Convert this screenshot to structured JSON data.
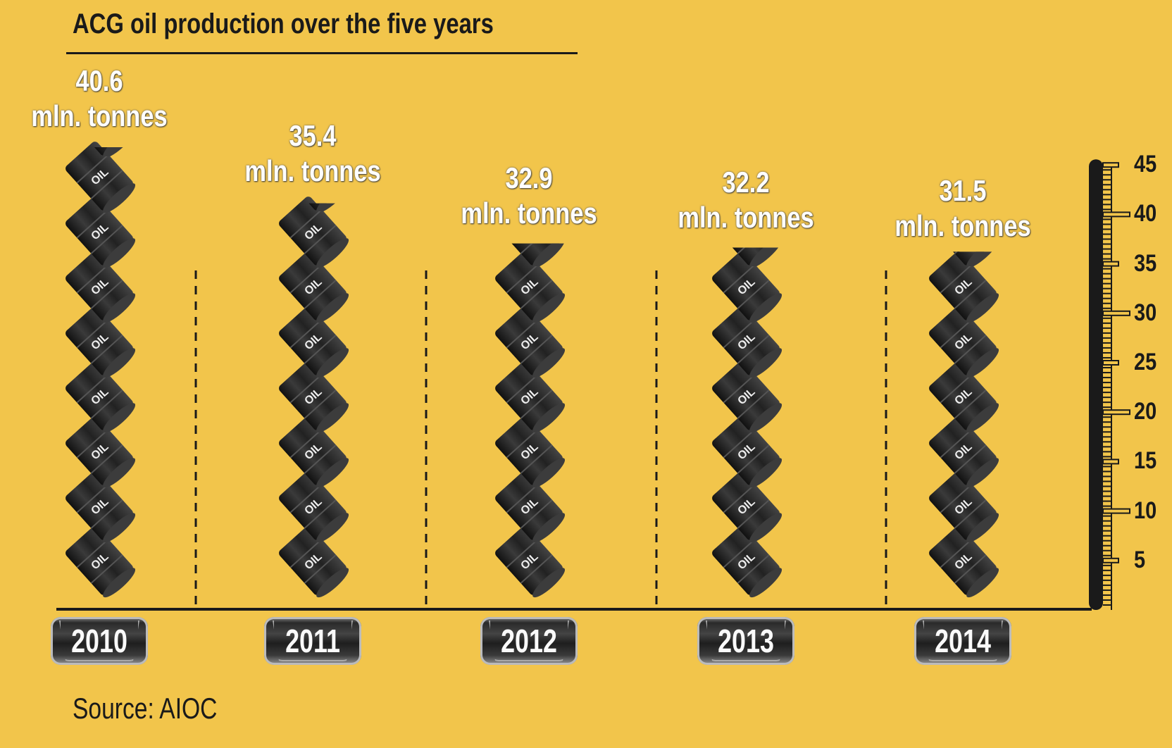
{
  "chart_data": {
    "type": "bar",
    "title": "ACG oil production over the five years",
    "categories": [
      "2010",
      "2011",
      "2012",
      "2013",
      "2014"
    ],
    "values": [
      40.6,
      35.4,
      32.9,
      32.2,
      31.5
    ],
    "value_labels": [
      "40.6",
      "35.4",
      "32.9",
      "32.2",
      "31.5"
    ],
    "unit_label": "mln. tonnes",
    "yticks": [
      5,
      10,
      15,
      20,
      25,
      30,
      35,
      40,
      45
    ],
    "ylim": [
      0,
      45
    ],
    "mark": "oil-barrel-pictogram",
    "barrel_text": "OIL",
    "source": "Source: AIOC"
  },
  "colors": {
    "background": "#f2c54b",
    "barrel": "#2b2b2b",
    "text_dark": "#1a1a1a",
    "label": "#ffffff"
  }
}
